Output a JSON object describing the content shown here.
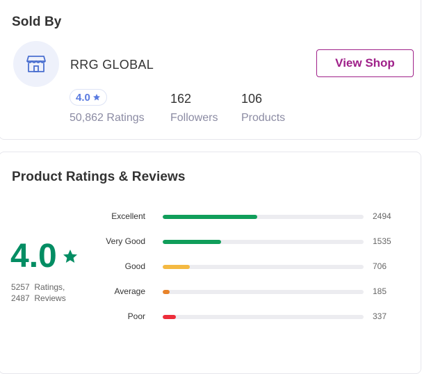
{
  "sold_by": {
    "title": "Sold By",
    "shop_icon": "store-icon",
    "shop_name": "RRG GLOBAL",
    "view_shop_label": "View Shop",
    "rating": "4.0",
    "ratings_count": "50,862 Ratings",
    "followers_value": "162",
    "followers_label": "Followers",
    "products_value": "106",
    "products_label": "Products",
    "accent_color": "#9f2089",
    "rating_color": "#5a7be0"
  },
  "reviews": {
    "title": "Product Ratings & Reviews",
    "average": "4.0",
    "ratings_line": "5257  Ratings,",
    "reviews_line": "2487  Reviews",
    "star_color": "#038d63",
    "breakdown": [
      {
        "label": "Excellent",
        "count": "2494",
        "fraction": 0.47,
        "color": "#109e5a"
      },
      {
        "label": "Very Good",
        "count": "1535",
        "fraction": 0.29,
        "color": "#109e5a"
      },
      {
        "label": "Good",
        "count": "706",
        "fraction": 0.135,
        "color": "#f4b942"
      },
      {
        "label": "Average",
        "count": "185",
        "fraction": 0.035,
        "color": "#e8832a"
      },
      {
        "label": "Poor",
        "count": "337",
        "fraction": 0.065,
        "color": "#ed2d3a"
      }
    ]
  }
}
